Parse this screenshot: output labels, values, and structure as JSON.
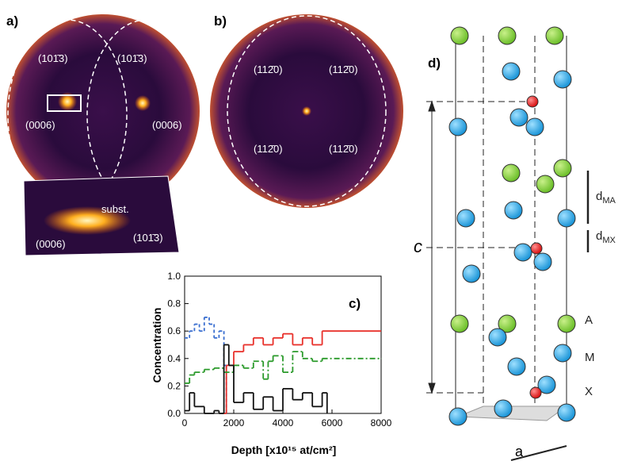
{
  "panel_a": {
    "label": "a)",
    "spots": [
      "(101̄3)",
      "(101̄3)",
      "(0006)",
      "(0006)"
    ],
    "inset": [
      "subst.",
      "(0006)",
      "(101̄3)"
    ]
  },
  "panel_b": {
    "label": "b)",
    "spots": [
      "(112̄0)",
      "(112̄0)",
      "(112̄0)",
      "(112̄0)"
    ]
  },
  "panel_d": {
    "label": "d)",
    "c_axis": "c",
    "a_axis": "a",
    "d_MA": {
      "main": "d",
      "sub": "MA"
    },
    "d_MX": {
      "main": "d",
      "sub": "MX"
    },
    "sites": [
      "A",
      "M",
      "X"
    ]
  },
  "chart_data": {
    "type": "step",
    "label": "c)",
    "x_label": "Depth [x10¹⁵ at/cm²]",
    "y_label": "Concentration",
    "xlim": [
      0,
      8000
    ],
    "ylim": [
      0,
      1
    ],
    "xticks": [
      0,
      2000,
      4000,
      6000,
      8000
    ],
    "yticks": [
      {
        "value": 0,
        "label": "0.0"
      },
      {
        "value": 0.2,
        "label": "0.2"
      },
      {
        "value": 0.4,
        "label": "0.4"
      },
      {
        "value": 0.6,
        "label": "0.6"
      },
      {
        "value": 0.8,
        "label": "0.8"
      },
      {
        "value": 1,
        "label": "1.0"
      }
    ],
    "series": [
      {
        "color": "#3a6fd0",
        "style": "dashed",
        "x": [
          0,
          200,
          400,
          600,
          800,
          1000,
          1200,
          1400,
          1600,
          1700
        ],
        "values": [
          0.55,
          0.6,
          0.65,
          0.6,
          0.7,
          0.65,
          0.55,
          0.6,
          0.35,
          0
        ]
      },
      {
        "color": "#e8302a",
        "style": "solid",
        "x": [
          1500,
          1700,
          2000,
          2400,
          2800,
          3200,
          3600,
          4000,
          4400,
          4800,
          5200,
          5600,
          8000
        ],
        "values": [
          0,
          0.35,
          0.45,
          0.5,
          0.55,
          0.5,
          0.55,
          0.58,
          0.5,
          0.55,
          0.5,
          0.6,
          0.6
        ]
      },
      {
        "color": "#2a9a2a",
        "style": "dashdot",
        "x": [
          0,
          200,
          400,
          800,
          1200,
          1600,
          2000,
          2400,
          2800,
          3200,
          3400,
          3600,
          4000,
          4400,
          4800,
          5200,
          5600,
          8000
        ],
        "values": [
          0.22,
          0.28,
          0.3,
          0.32,
          0.33,
          0.3,
          0.35,
          0.33,
          0.38,
          0.25,
          0.38,
          0.42,
          0.3,
          0.45,
          0.4,
          0.38,
          0.4,
          0.4
        ]
      },
      {
        "color": "#111111",
        "style": "solid",
        "x": [
          0,
          200,
          400,
          800,
          1200,
          1400,
          1600,
          1800,
          2000,
          2400,
          2800,
          3200,
          3600,
          4000,
          4400,
          4800,
          5200,
          5600,
          5800
        ],
        "values": [
          0.02,
          0.15,
          0.05,
          0,
          0.02,
          0,
          0.5,
          0.35,
          0.08,
          0.15,
          0.03,
          0.12,
          0.02,
          0.18,
          0.1,
          0.15,
          0.05,
          0.15,
          0
        ]
      }
    ]
  }
}
